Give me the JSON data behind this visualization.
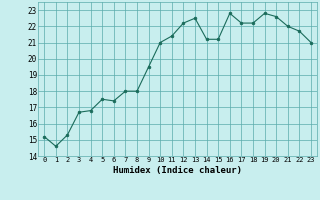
{
  "x": [
    0,
    1,
    2,
    3,
    4,
    5,
    6,
    7,
    8,
    9,
    10,
    11,
    12,
    13,
    14,
    15,
    16,
    17,
    18,
    19,
    20,
    21,
    22,
    23
  ],
  "y": [
    15.2,
    14.6,
    15.3,
    16.7,
    16.8,
    17.5,
    17.4,
    18.0,
    18.0,
    19.5,
    21.0,
    21.4,
    22.2,
    22.5,
    21.2,
    21.2,
    22.8,
    22.2,
    22.2,
    22.8,
    22.6,
    22.0,
    21.7,
    21.0
  ],
  "line_color": "#1a6b5a",
  "marker": "o",
  "marker_size": 2.0,
  "bg_color": "#c8eeee",
  "grid_color": "#5aabab",
  "xlabel": "Humidex (Indice chaleur)",
  "xlim": [
    -0.5,
    23.5
  ],
  "ylim": [
    14,
    23.5
  ],
  "yticks": [
    14,
    15,
    16,
    17,
    18,
    19,
    20,
    21,
    22,
    23
  ],
  "xticks": [
    0,
    1,
    2,
    3,
    4,
    5,
    6,
    7,
    8,
    9,
    10,
    11,
    12,
    13,
    14,
    15,
    16,
    17,
    18,
    19,
    20,
    21,
    22,
    23
  ]
}
